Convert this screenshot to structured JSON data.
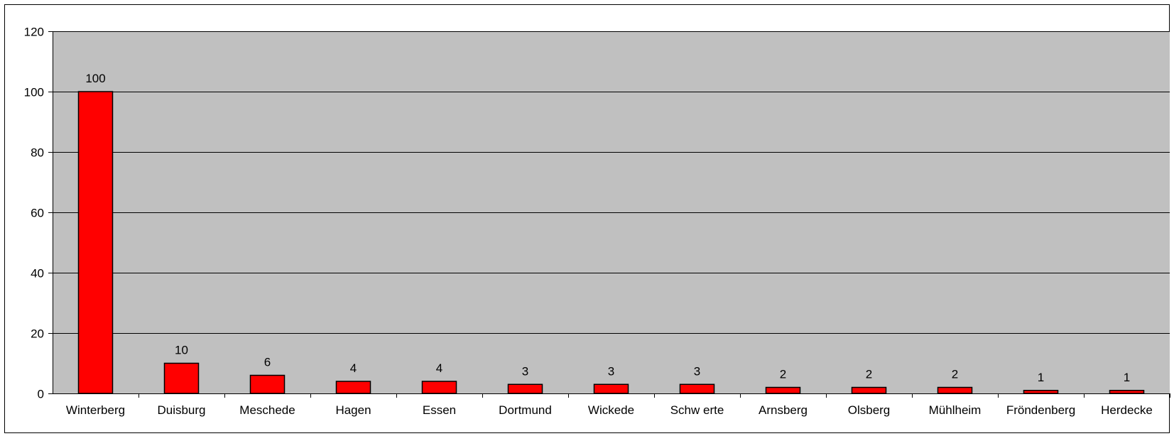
{
  "chart_data": {
    "type": "bar",
    "title": "",
    "xlabel": "",
    "ylabel": "",
    "categories": [
      "Winterberg",
      "Duisburg",
      "Meschede",
      "Hagen",
      "Essen",
      "Dortmund",
      "Wickede",
      "Schw erte",
      "Arnsberg",
      "Olsberg",
      "Mühlheim",
      "Fröndenberg",
      "Herdecke"
    ],
    "values": [
      100,
      10,
      6,
      4,
      4,
      3,
      3,
      3,
      2,
      2,
      2,
      1,
      1
    ],
    "data_labels": [
      "100",
      "10",
      "6",
      "4",
      "4",
      "3",
      "3",
      "3",
      "2",
      "2",
      "2",
      "1",
      "1"
    ],
    "ylim": [
      0,
      120
    ],
    "yticks": [
      0,
      20,
      40,
      60,
      80,
      100,
      120
    ],
    "ytick_labels": [
      "0",
      "20",
      "40",
      "60",
      "80",
      "100",
      "120"
    ],
    "grid": true,
    "legend": "none",
    "colors": {
      "bar_fill": "#ff0000",
      "bar_stroke": "#000000",
      "plot_background": "#c0c0c0",
      "gridline": "#000000",
      "page_background": "#ffffff"
    }
  }
}
